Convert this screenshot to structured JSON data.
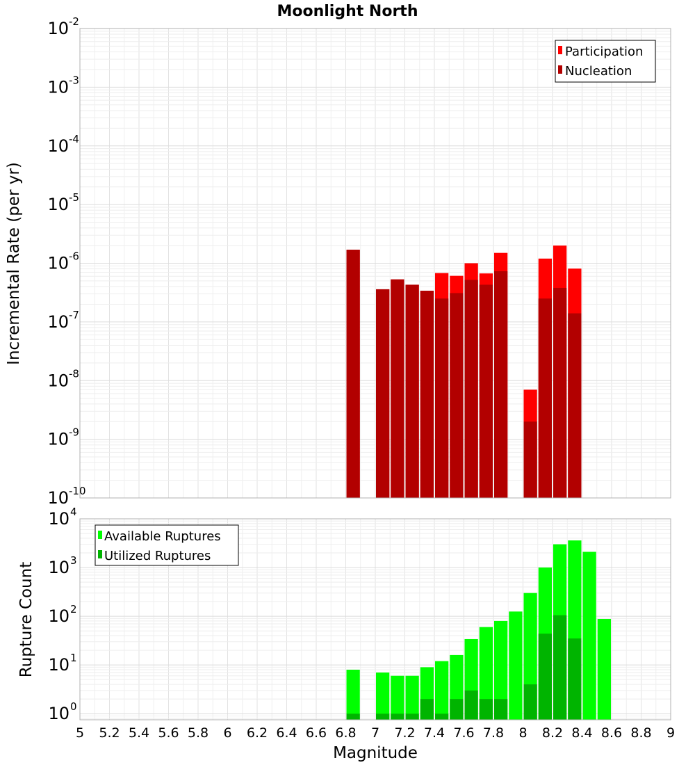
{
  "chart_data": [
    {
      "type": "bar",
      "title": "Moonlight North",
      "ylabel": "Incremental Rate (per yr)",
      "xlabel": "",
      "xlim": [
        5,
        9
      ],
      "ylim": [
        1e-10,
        0.01
      ],
      "yscale": "log",
      "grid": true,
      "legend_position": "top-right",
      "y_ticks": [
        {
          "base": "10",
          "exp": "-10"
        },
        {
          "base": "10",
          "exp": "-9"
        },
        {
          "base": "10",
          "exp": "-8"
        },
        {
          "base": "10",
          "exp": "-7"
        },
        {
          "base": "10",
          "exp": "-6"
        },
        {
          "base": "10",
          "exp": "-5"
        },
        {
          "base": "10",
          "exp": "-4"
        },
        {
          "base": "10",
          "exp": "-3"
        },
        {
          "base": "10",
          "exp": "-2"
        }
      ],
      "x": [
        6.85,
        7.05,
        7.15,
        7.25,
        7.35,
        7.45,
        7.55,
        7.65,
        7.75,
        7.85,
        8.05,
        8.15,
        8.25,
        8.35
      ],
      "series": [
        {
          "name": "Participation",
          "color": "#ff0000",
          "values": [
            1.7e-06,
            3.6e-07,
            5.3e-07,
            4.3e-07,
            3.4e-07,
            6.8e-07,
            6.1e-07,
            1e-06,
            6.7e-07,
            1.5e-06,
            7e-09,
            1.2e-06,
            2e-06,
            8.1e-07
          ]
        },
        {
          "name": "Nucleation",
          "color": "#b20000",
          "values": [
            1.7e-06,
            3.6e-07,
            5.3e-07,
            4.3e-07,
            3.4e-07,
            2.5e-07,
            3.1e-07,
            5.2e-07,
            4.3e-07,
            7.3e-07,
            2e-09,
            2.5e-07,
            3.8e-07,
            1.4e-07
          ]
        }
      ]
    },
    {
      "type": "bar",
      "title": "",
      "ylabel": "Rupture Count",
      "xlabel": "Magnitude",
      "xlim": [
        5,
        9
      ],
      "ylim": [
        0.75,
        10000
      ],
      "yscale": "log",
      "grid": true,
      "legend_position": "top-left",
      "y_ticks": [
        {
          "base": "10",
          "exp": "0"
        },
        {
          "base": "10",
          "exp": "1"
        },
        {
          "base": "10",
          "exp": "2"
        },
        {
          "base": "10",
          "exp": "3"
        },
        {
          "base": "10",
          "exp": "4"
        }
      ],
      "x_ticks": [
        "5",
        "5.2",
        "5.4",
        "5.6",
        "5.8",
        "6",
        "6.2",
        "6.4",
        "6.6",
        "6.8",
        "7",
        "7.2",
        "7.4",
        "7.6",
        "7.8",
        "8",
        "8.2",
        "8.4",
        "8.6",
        "8.8",
        "9"
      ],
      "x": [
        6.85,
        7.05,
        7.15,
        7.25,
        7.35,
        7.45,
        7.55,
        7.65,
        7.75,
        7.85,
        7.95,
        8.05,
        8.15,
        8.25,
        8.35,
        8.45,
        8.55
      ],
      "series": [
        {
          "name": "Available Ruptures",
          "color": "#00ff00",
          "values": [
            8,
            7,
            6,
            6,
            9,
            12,
            16,
            34,
            60,
            80,
            125,
            300,
            1000,
            3000,
            3600,
            2100,
            88
          ]
        },
        {
          "name": "Utilized Ruptures",
          "color": "#00b400",
          "values": [
            1,
            1,
            1,
            1,
            2,
            1,
            2,
            3,
            2,
            2,
            null,
            4,
            44,
            105,
            35,
            null,
            null
          ]
        }
      ]
    }
  ]
}
